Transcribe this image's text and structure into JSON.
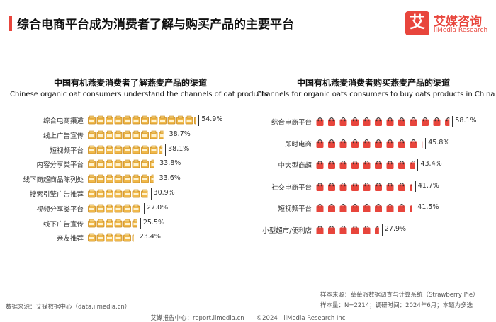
{
  "header": {
    "title": "综合电商平台成为消费者了解与购买产品的主要平台",
    "logo_mark": "艾",
    "logo_cn": "艾媒咨询",
    "logo_en": "iiMedia Research"
  },
  "colors": {
    "accent": "#e8453c",
    "oat_icon": "#f0b84a",
    "bag_icon": "#e8453c"
  },
  "icons": {
    "left_chart": "oat-box-icon",
    "right_chart": "shopping-bag-icon"
  },
  "chart_data": [
    {
      "type": "bar",
      "title": "中国有机燕麦消费者了解燕麦产品的渠道",
      "subtitle": "Chinese organic oat consumers understand the channels of oat products",
      "categories": [
        "综合电商渠道",
        "线上广告宣传",
        "短视频平台",
        "内容分享类平台",
        "线下商超商品陈列处",
        "搜索引擎广告推荐",
        "视频分享类平台",
        "线下广告宣传",
        "亲友推荐"
      ],
      "values": [
        54.9,
        38.7,
        38.1,
        33.8,
        33.6,
        30.9,
        27.0,
        25.5,
        23.4
      ],
      "value_labels": [
        "54.9%",
        "38.7%",
        "38.1%",
        "33.8%",
        "33.6%",
        "30.9%",
        "27.0%",
        "25.5%",
        "23.4%"
      ],
      "unit": "%"
    },
    {
      "type": "bar",
      "title": "中国有机燕麦消费者购买燕麦产品的渠道",
      "subtitle": "Channels for organic oats consumers to buy oats products in China",
      "categories": [
        "综合电商平台",
        "即时电商",
        "中大型商超",
        "社交电商平台",
        "短视频平台",
        "小型超市/便利店"
      ],
      "values": [
        58.1,
        45.8,
        43.4,
        41.7,
        41.5,
        27.9
      ],
      "value_labels": [
        "58.1%",
        "45.8%",
        "43.4%",
        "41.7%",
        "41.5%",
        "27.9%"
      ],
      "unit": "%"
    }
  ],
  "footer": {
    "source_left": "数据来源：艾媒数据中心（data.iimedia.cn）",
    "source_right_1": "样本来源：草莓派数据调查与计算系统（Strawberry Pie）",
    "source_right_2": "样本量：N=2214；调研时间：2024年6月；本题为多选",
    "copyright": "艾媒报告中心：report.iimedia.cn　　©2024　iiMedia Research Inc"
  }
}
